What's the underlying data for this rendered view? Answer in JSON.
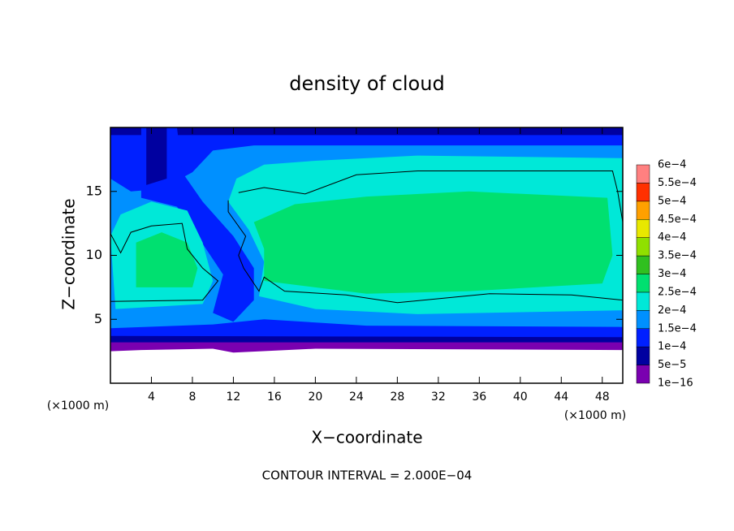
{
  "chart_data": {
    "type": "contour",
    "title": "density of cloud",
    "xlabel": "X−coordinate",
    "ylabel": "Z−coordinate",
    "x_unit": "(×1000 m)",
    "annotation": "CONTOUR INTERVAL = 2.000E−04",
    "xlim": [
      0,
      50
    ],
    "ylim": [
      0,
      20
    ],
    "xticks": [
      4,
      8,
      12,
      16,
      20,
      24,
      28,
      32,
      36,
      40,
      44,
      48
    ],
    "yticks": [
      5,
      10,
      15
    ],
    "colorbar": {
      "ticks": [
        {
          "value": 1e-16,
          "label": "1e−16"
        },
        {
          "value": 5e-05,
          "label": "5e−5"
        },
        {
          "value": 0.0001,
          "label": "1e−4"
        },
        {
          "value": 0.00015,
          "label": "1.5e−4"
        },
        {
          "value": 0.0002,
          "label": "2e−4"
        },
        {
          "value": 0.00025,
          "label": "2.5e−4"
        },
        {
          "value": 0.0003,
          "label": "3e−4"
        },
        {
          "value": 0.00035,
          "label": "3.5e−4"
        },
        {
          "value": 0.0004,
          "label": "4e−4"
        },
        {
          "value": 0.00045,
          "label": "4.5e−4"
        },
        {
          "value": 0.0005,
          "label": "5e−4"
        },
        {
          "value": 0.00055,
          "label": "5.5e−4"
        },
        {
          "value": 0.0006,
          "label": "6e−4"
        }
      ],
      "colors": [
        "#7a00b0",
        "#0000a0",
        "#0020ff",
        "#0090ff",
        "#00e8d8",
        "#00e070",
        "#30c020",
        "#90e000",
        "#e8e800",
        "#ffa000",
        "#ff3000",
        "#ff8080"
      ]
    }
  }
}
